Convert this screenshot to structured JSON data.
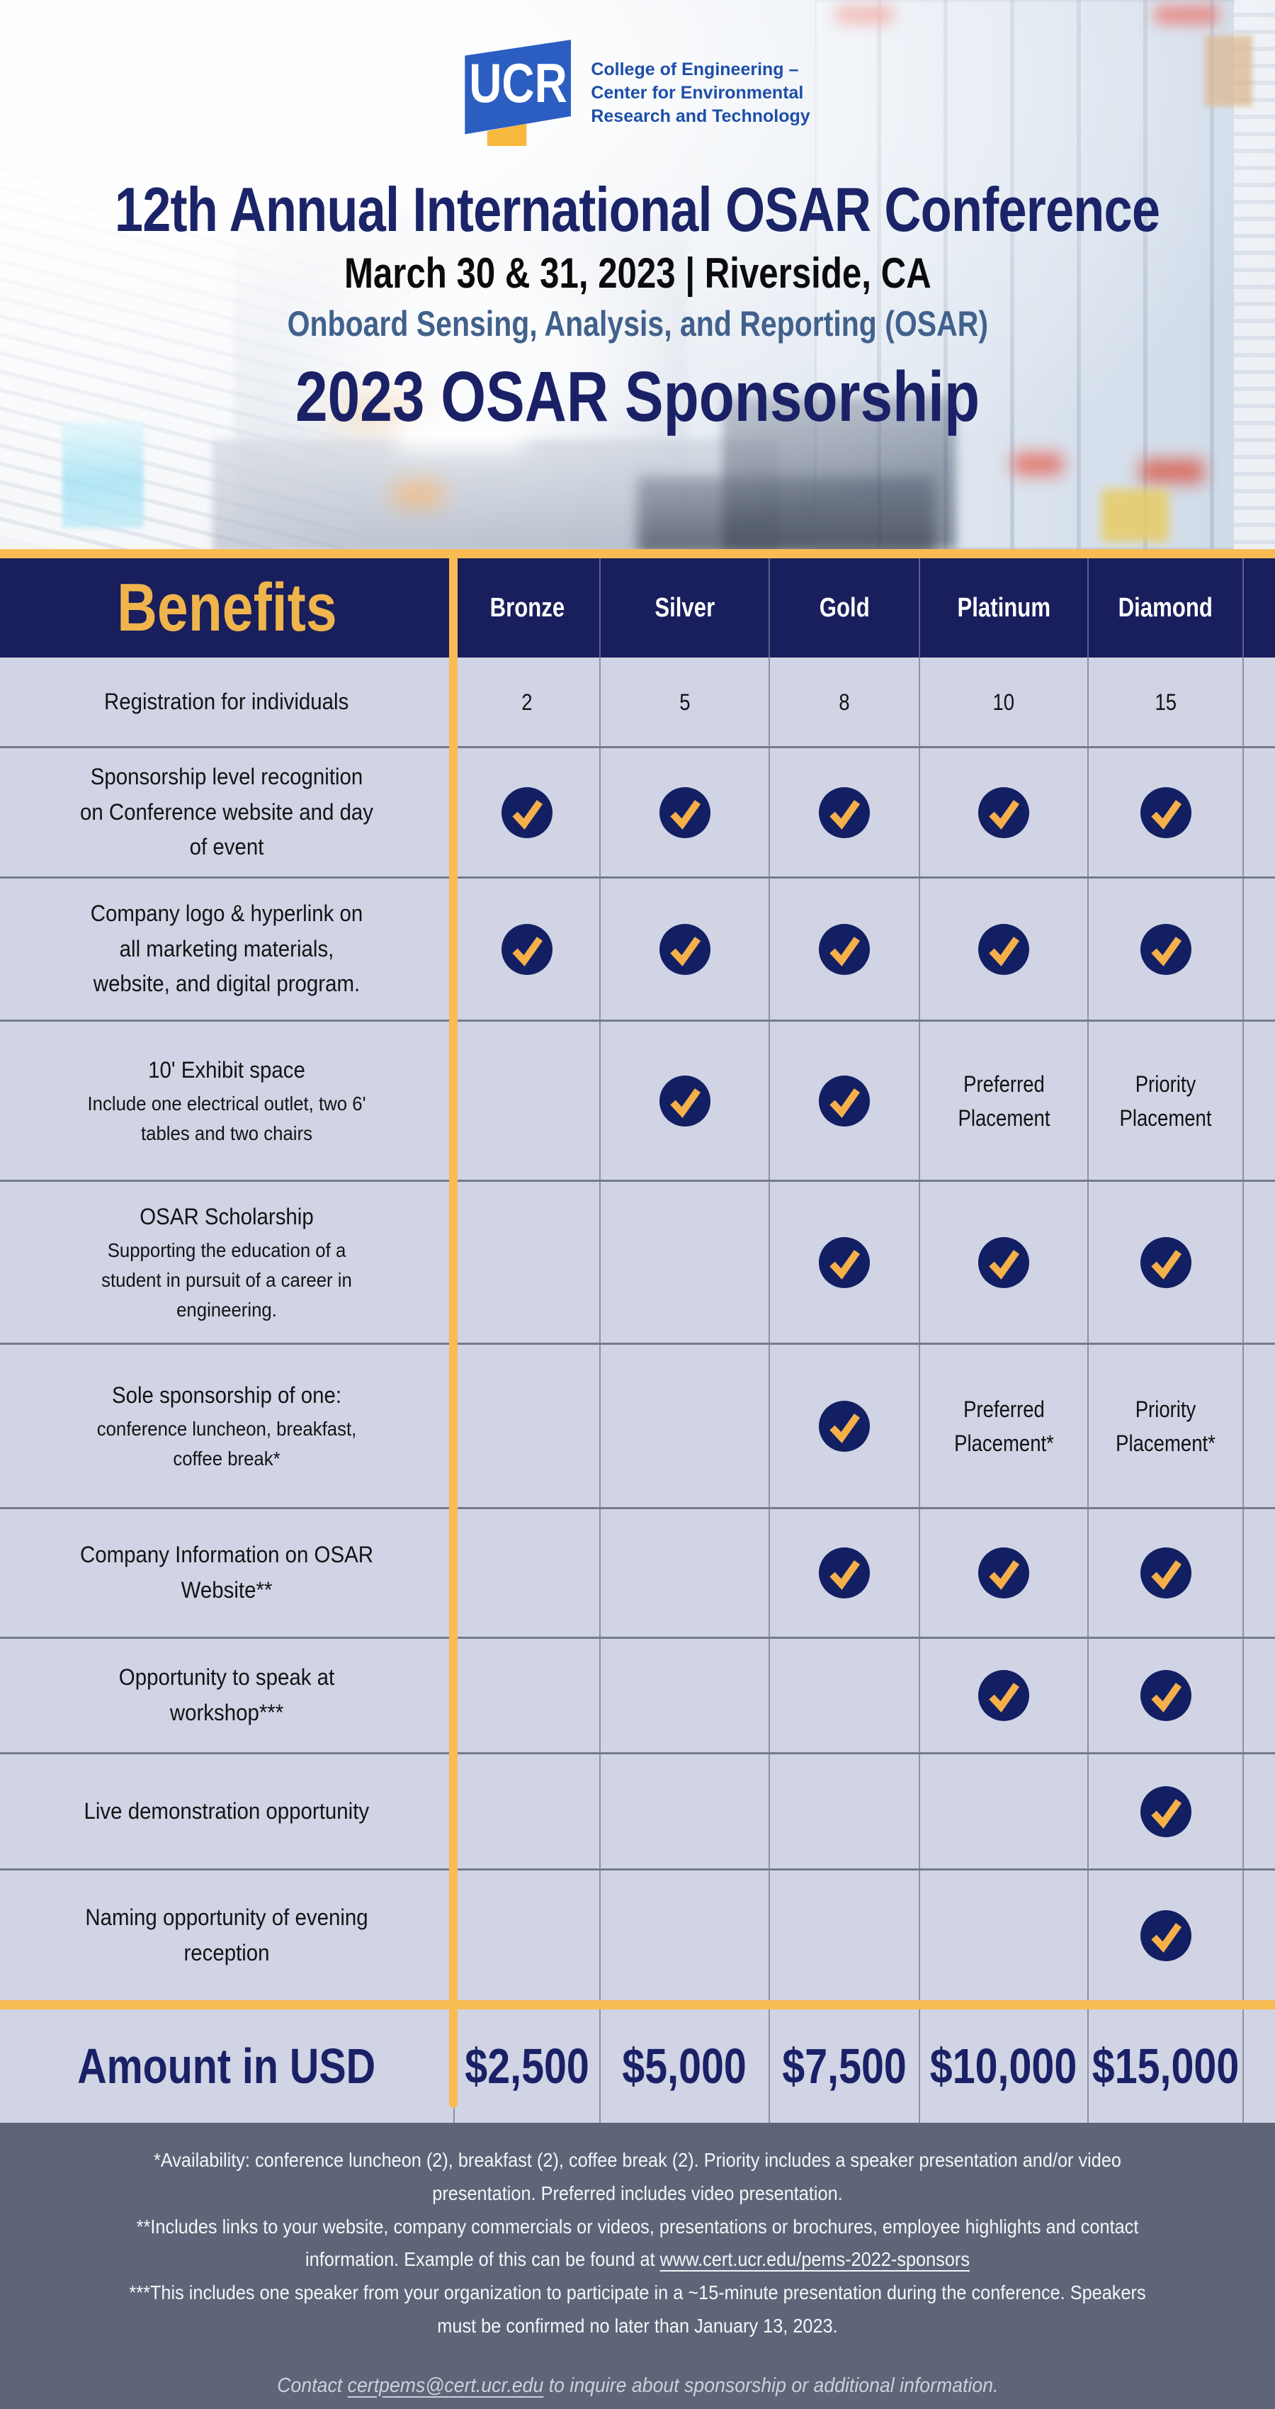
{
  "logo": {
    "mark": "UCR",
    "lines": [
      "College of Engineering –",
      "Center for Environmental",
      "Research and Technology"
    ]
  },
  "header": {
    "title": "12th Annual International OSAR Conference",
    "date_location": "March 30 & 31, 2023 | Riverside, CA",
    "program": "Onboard Sensing, Analysis, and Reporting (OSAR)",
    "sponsorship": "2023 OSAR Sponsorship"
  },
  "table": {
    "benefits_label": "Benefits",
    "tiers": [
      "Bronze",
      "Silver",
      "Gold",
      "Platinum",
      "Diamond"
    ],
    "rows": [
      {
        "label": "Registration for individuals",
        "sub": "",
        "cells": [
          "2",
          "5",
          "8",
          "10",
          "15"
        ]
      },
      {
        "label": "Sponsorship level recognition on Conference website and day of event",
        "sub": "",
        "cells": [
          "check",
          "check",
          "check",
          "check",
          "check"
        ]
      },
      {
        "label": "Company logo & hyperlink on all marketing materials, website, and digital program.",
        "sub": "",
        "cells": [
          "check",
          "check",
          "check",
          "check",
          "check"
        ]
      },
      {
        "label": "10' Exhibit space",
        "sub": "Include one electrical outlet, two 6' tables and two chairs",
        "cells": [
          "",
          "check",
          "check",
          "Preferred Placement",
          "Priority Placement"
        ]
      },
      {
        "label": "OSAR Scholarship",
        "sub": "Supporting the education of a student in pursuit of a career in engineering.",
        "cells": [
          "",
          "",
          "check",
          "check",
          "check"
        ]
      },
      {
        "label": "Sole sponsorship of one:",
        "sub": "conference luncheon, breakfast, coffee break*",
        "cells": [
          "",
          "",
          "check",
          "Preferred Placement*",
          "Priority Placement*"
        ]
      },
      {
        "label": "Company Information on OSAR Website**",
        "sub": "",
        "cells": [
          "",
          "",
          "check",
          "check",
          "check"
        ]
      },
      {
        "label": "Opportunity to speak at workshop***",
        "sub": "",
        "cells": [
          "",
          "",
          "",
          "check",
          "check"
        ]
      },
      {
        "label": "Live demonstration opportunity",
        "sub": "",
        "cells": [
          "",
          "",
          "",
          "",
          "check"
        ]
      },
      {
        "label": "Naming opportunity of evening reception",
        "sub": "",
        "cells": [
          "",
          "",
          "",
          "",
          "check"
        ]
      }
    ],
    "amount_label": "Amount in USD",
    "amounts": [
      "$2,500",
      "$5,000",
      "$7,500",
      "$10,000",
      "$15,000"
    ]
  },
  "footnotes": {
    "n1": "*Availability: conference luncheon (2), breakfast (2), coffee break (2). Priority includes a speaker presentation and/or video presentation. Preferred includes video presentation.",
    "n2_pre": "**Includes links to your website, company commercials or videos, presentations or brochures, employee highlights and contact information. Example of this can be found at ",
    "n2_link": "www.cert.ucr.edu/pems-2022-sponsors",
    "n3": "***This includes one speaker from your organization to participate in a ~15-minute presentation during the conference. Speakers must be confirmed no later than January 13, 2023."
  },
  "contact": {
    "pre": "Contact ",
    "email": "certpems@cert.ucr.edu",
    "post": " to inquire about sponsorship or additional information."
  },
  "colors": {
    "accent_gold": "#F9BC52",
    "navy": "#191E5C",
    "check_navy": "#131F63",
    "check_gold": "#F5B04A",
    "row_lavender": "#D0D4E4",
    "footer_slate": "#5E6578",
    "title_navy": "#1B2468",
    "program_blue": "#41618C",
    "logo_blue": "#2C5EC2"
  }
}
